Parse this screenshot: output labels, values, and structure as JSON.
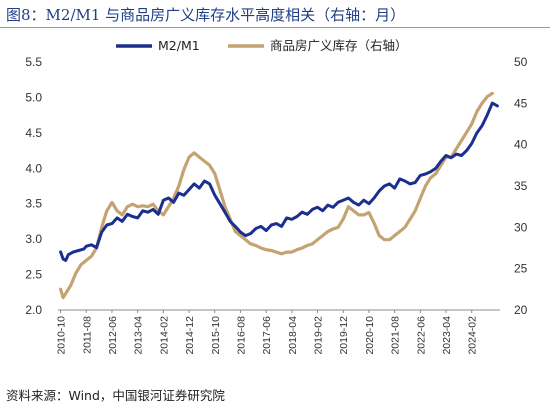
{
  "title": "图8：M2/M1 与商品房广义库存水平高度相关（右轴：月）",
  "source": "资料来源：Wind，中国银河证券研究院",
  "colors": {
    "m2m1": "#1a2f8f",
    "inventory": "#c4a272",
    "title": "#1f3f87"
  },
  "chart_data": {
    "type": "line",
    "title": "图8：M2/M1 与商品房广义库存水平高度相关（右轴：月）",
    "grid": false,
    "legend_position": "top",
    "y_left": {
      "ylim": [
        2.0,
        5.5
      ],
      "ticks": [
        "2.0",
        "2.5",
        "3.0",
        "3.5",
        "4.0",
        "4.5",
        "5.0",
        "5.5"
      ]
    },
    "y_right": {
      "ylim": [
        20,
        50
      ],
      "ticks": [
        "20",
        "25",
        "30",
        "35",
        "40",
        "45",
        "50"
      ]
    },
    "x_ticks": [
      "2010-10",
      "2011-08",
      "2012-06",
      "2013-04",
      "2014-02",
      "2014-12",
      "2015-10",
      "2016-08",
      "2017-06",
      "2018-04",
      "2019-02",
      "2019-12",
      "2020-10",
      "2021-08",
      "2022-06",
      "2023-04",
      "2024-02"
    ],
    "series": [
      {
        "name": "M2/M1",
        "axis": "left",
        "points": [
          [
            "2010-10",
            2.82
          ],
          [
            "2010-11",
            2.72
          ],
          [
            "2010-12",
            2.7
          ],
          [
            "2011-01",
            2.78
          ],
          [
            "2011-03",
            2.82
          ],
          [
            "2011-05",
            2.84
          ],
          [
            "2011-07",
            2.86
          ],
          [
            "2011-08",
            2.9
          ],
          [
            "2011-10",
            2.92
          ],
          [
            "2011-12",
            2.88
          ],
          [
            "2012-02",
            3.1
          ],
          [
            "2012-04",
            3.2
          ],
          [
            "2012-06",
            3.22
          ],
          [
            "2012-08",
            3.3
          ],
          [
            "2012-10",
            3.25
          ],
          [
            "2012-12",
            3.35
          ],
          [
            "2013-02",
            3.32
          ],
          [
            "2013-04",
            3.3
          ],
          [
            "2013-06",
            3.4
          ],
          [
            "2013-08",
            3.38
          ],
          [
            "2013-10",
            3.42
          ],
          [
            "2013-12",
            3.35
          ],
          [
            "2014-02",
            3.55
          ],
          [
            "2014-04",
            3.58
          ],
          [
            "2014-06",
            3.52
          ],
          [
            "2014-08",
            3.65
          ],
          [
            "2014-10",
            3.62
          ],
          [
            "2014-12",
            3.7
          ],
          [
            "2015-02",
            3.78
          ],
          [
            "2015-04",
            3.72
          ],
          [
            "2015-06",
            3.82
          ],
          [
            "2015-08",
            3.78
          ],
          [
            "2015-10",
            3.62
          ],
          [
            "2015-12",
            3.5
          ],
          [
            "2016-02",
            3.38
          ],
          [
            "2016-04",
            3.25
          ],
          [
            "2016-06",
            3.18
          ],
          [
            "2016-08",
            3.1
          ],
          [
            "2016-10",
            3.05
          ],
          [
            "2016-12",
            3.08
          ],
          [
            "2017-02",
            3.15
          ],
          [
            "2017-04",
            3.18
          ],
          [
            "2017-06",
            3.12
          ],
          [
            "2017-08",
            3.2
          ],
          [
            "2017-10",
            3.22
          ],
          [
            "2017-12",
            3.18
          ],
          [
            "2018-02",
            3.3
          ],
          [
            "2018-04",
            3.28
          ],
          [
            "2018-06",
            3.32
          ],
          [
            "2018-08",
            3.38
          ],
          [
            "2018-10",
            3.35
          ],
          [
            "2018-12",
            3.42
          ],
          [
            "2019-02",
            3.45
          ],
          [
            "2019-04",
            3.4
          ],
          [
            "2019-06",
            3.48
          ],
          [
            "2019-08",
            3.45
          ],
          [
            "2019-10",
            3.52
          ],
          [
            "2019-12",
            3.55
          ],
          [
            "2020-02",
            3.58
          ],
          [
            "2020-04",
            3.52
          ],
          [
            "2020-06",
            3.48
          ],
          [
            "2020-08",
            3.55
          ],
          [
            "2020-10",
            3.5
          ],
          [
            "2020-12",
            3.58
          ],
          [
            "2021-02",
            3.68
          ],
          [
            "2021-04",
            3.75
          ],
          [
            "2021-06",
            3.78
          ],
          [
            "2021-08",
            3.72
          ],
          [
            "2021-10",
            3.85
          ],
          [
            "2021-12",
            3.82
          ],
          [
            "2022-02",
            3.78
          ],
          [
            "2022-04",
            3.8
          ],
          [
            "2022-06",
            3.9
          ],
          [
            "2022-08",
            3.92
          ],
          [
            "2022-10",
            3.95
          ],
          [
            "2022-12",
            4.0
          ],
          [
            "2023-02",
            4.1
          ],
          [
            "2023-04",
            4.18
          ],
          [
            "2023-06",
            4.15
          ],
          [
            "2023-08",
            4.2
          ],
          [
            "2023-10",
            4.18
          ],
          [
            "2023-12",
            4.25
          ],
          [
            "2024-02",
            4.35
          ],
          [
            "2024-04",
            4.5
          ],
          [
            "2024-06",
            4.6
          ],
          [
            "2024-08",
            4.75
          ],
          [
            "2024-10",
            4.92
          ],
          [
            "2024-12",
            4.88
          ]
        ]
      },
      {
        "name": "商品房广义库存（右轴）",
        "axis": "right",
        "points": [
          [
            "2010-10",
            22.5
          ],
          [
            "2010-11",
            21.5
          ],
          [
            "2010-12",
            22.0
          ],
          [
            "2011-02",
            23.0
          ],
          [
            "2011-04",
            24.5
          ],
          [
            "2011-06",
            25.5
          ],
          [
            "2011-08",
            26.0
          ],
          [
            "2011-10",
            26.5
          ],
          [
            "2011-12",
            27.5
          ],
          [
            "2012-02",
            30.0
          ],
          [
            "2012-04",
            32.0
          ],
          [
            "2012-06",
            33.0
          ],
          [
            "2012-08",
            32.0
          ],
          [
            "2012-10",
            31.5
          ],
          [
            "2012-12",
            32.5
          ],
          [
            "2013-02",
            32.8
          ],
          [
            "2013-04",
            32.5
          ],
          [
            "2013-06",
            32.6
          ],
          [
            "2013-08",
            32.5
          ],
          [
            "2013-10",
            32.8
          ],
          [
            "2013-12",
            32.0
          ],
          [
            "2014-02",
            31.5
          ],
          [
            "2014-04",
            32.5
          ],
          [
            "2014-06",
            33.5
          ],
          [
            "2014-08",
            35.0
          ],
          [
            "2014-10",
            37.0
          ],
          [
            "2014-12",
            38.5
          ],
          [
            "2015-02",
            39.0
          ],
          [
            "2015-04",
            38.5
          ],
          [
            "2015-06",
            38.0
          ],
          [
            "2015-08",
            37.5
          ],
          [
            "2015-10",
            36.5
          ],
          [
            "2015-12",
            34.5
          ],
          [
            "2016-02",
            32.5
          ],
          [
            "2016-04",
            31.0
          ],
          [
            "2016-06",
            29.5
          ],
          [
            "2016-08",
            29.0
          ],
          [
            "2016-10",
            28.5
          ],
          [
            "2016-12",
            28.0
          ],
          [
            "2017-02",
            27.8
          ],
          [
            "2017-04",
            27.5
          ],
          [
            "2017-06",
            27.3
          ],
          [
            "2017-08",
            27.2
          ],
          [
            "2017-10",
            27.0
          ],
          [
            "2017-12",
            26.8
          ],
          [
            "2018-02",
            27.0
          ],
          [
            "2018-04",
            27.0
          ],
          [
            "2018-06",
            27.3
          ],
          [
            "2018-08",
            27.5
          ],
          [
            "2018-10",
            27.8
          ],
          [
            "2018-12",
            28.0
          ],
          [
            "2019-02",
            28.5
          ],
          [
            "2019-04",
            29.0
          ],
          [
            "2019-06",
            29.5
          ],
          [
            "2019-08",
            29.8
          ],
          [
            "2019-10",
            30.0
          ],
          [
            "2019-12",
            31.0
          ],
          [
            "2020-02",
            32.5
          ],
          [
            "2020-04",
            32.0
          ],
          [
            "2020-06",
            31.5
          ],
          [
            "2020-08",
            31.5
          ],
          [
            "2020-10",
            31.8
          ],
          [
            "2020-12",
            30.5
          ],
          [
            "2021-02",
            29.0
          ],
          [
            "2021-04",
            28.5
          ],
          [
            "2021-06",
            28.5
          ],
          [
            "2021-08",
            29.0
          ],
          [
            "2021-10",
            29.5
          ],
          [
            "2021-12",
            30.0
          ],
          [
            "2022-02",
            31.0
          ],
          [
            "2022-04",
            32.0
          ],
          [
            "2022-06",
            33.5
          ],
          [
            "2022-08",
            35.0
          ],
          [
            "2022-10",
            36.0
          ],
          [
            "2022-12",
            36.5
          ],
          [
            "2023-02",
            37.5
          ],
          [
            "2023-04",
            38.5
          ],
          [
            "2023-06",
            38.5
          ],
          [
            "2023-08",
            39.5
          ],
          [
            "2023-10",
            40.5
          ],
          [
            "2023-12",
            41.5
          ],
          [
            "2024-02",
            42.5
          ],
          [
            "2024-04",
            44.0
          ],
          [
            "2024-06",
            45.0
          ],
          [
            "2024-08",
            45.8
          ],
          [
            "2024-10",
            46.2
          ]
        ]
      }
    ]
  }
}
